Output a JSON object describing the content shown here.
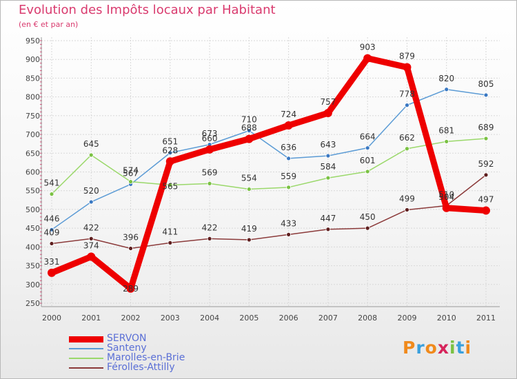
{
  "header": {
    "title": "Evolution des Impôts locaux par Habitant",
    "subtitle": "(en € et par an)"
  },
  "logo": {
    "text": "Proxiti",
    "colors": [
      "#f08a1c",
      "#3aa0dd",
      "#f08a1c",
      "#d6245b",
      "#7ac143",
      "#3aa0dd",
      "#f08a1c"
    ]
  },
  "chart_data": {
    "type": "line",
    "title": "Evolution des Impôts locaux par Habitant",
    "subtitle": "(en € et par an)",
    "xlabel": "",
    "ylabel": "",
    "ylim": [
      250,
      950
    ],
    "y_ticks": [
      250,
      300,
      350,
      400,
      450,
      500,
      550,
      600,
      650,
      700,
      750,
      800,
      850,
      900,
      950
    ],
    "categories": [
      "2000",
      "2001",
      "2002",
      "2003",
      "2004",
      "2005",
      "2006",
      "2007",
      "2008",
      "2009",
      "2010",
      "2011"
    ],
    "grid": true,
    "legend_position": "bottom-left",
    "series": [
      {
        "name": "Santeny",
        "color": "#5b9bd5",
        "marker": "#3a78c2",
        "values": [
          446,
          520,
          567,
          651,
          673,
          710,
          636,
          643,
          664,
          778,
          820,
          805
        ],
        "label_dy": [
          -12,
          -12,
          -12,
          -12,
          -12,
          -12,
          -12,
          -12,
          -12,
          -12,
          -12,
          -12
        ]
      },
      {
        "name": "Marolles-en-Brie",
        "color": "#9ad86a",
        "marker": "#7ac143",
        "values": [
          541,
          645,
          574,
          565,
          569,
          554,
          559,
          584,
          601,
          662,
          681,
          689
        ],
        "label_dy": [
          -12,
          -12,
          -12,
          6,
          -12,
          -12,
          -12,
          -12,
          -12,
          -12,
          -12,
          -12
        ]
      },
      {
        "name": "Férolles-Attilly",
        "color": "#8b3a3a",
        "marker": "#5e1f1f",
        "values": [
          409,
          422,
          396,
          411,
          422,
          419,
          433,
          447,
          450,
          499,
          510,
          592
        ],
        "label_dy": [
          -12,
          -12,
          -12,
          -12,
          -12,
          -12,
          -12,
          -12,
          -12,
          -12,
          -12,
          -12
        ]
      },
      {
        "name": "SERVON",
        "color": "#ee0000",
        "marker": "#ee0000",
        "values": [
          331,
          374,
          289,
          628,
          660,
          688,
          724,
          757,
          903,
          879,
          504,
          497
        ],
        "label_dy": [
          -12,
          -12,
          4,
          -12,
          -12,
          -12,
          -12,
          -12,
          -12,
          -12,
          -12,
          -12
        ],
        "emphasis": true
      }
    ],
    "legend_order": [
      "SERVON",
      "Santeny",
      "Marolles-en-Brie",
      "Férolles-Attilly"
    ]
  }
}
